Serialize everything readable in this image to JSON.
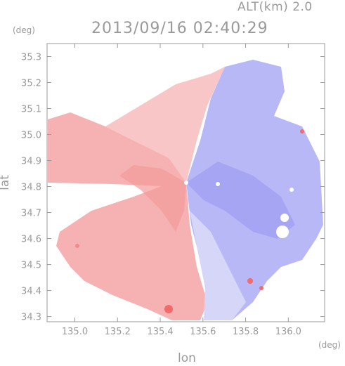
{
  "header": {
    "altitude_label": "ALT(km) 2.0",
    "timestamp": "2013/09/16 02:40:29"
  },
  "chart_data": {
    "type": "heatmap",
    "title": "2013/09/16 02:40:29",
    "subtitle": "ALT(km) 2.0",
    "xlabel": "lon",
    "ylabel": "lat",
    "x_unit": "(deg)",
    "y_unit": "(deg)",
    "xlim": [
      134.87,
      136.17
    ],
    "ylim": [
      34.28,
      35.35
    ],
    "x_ticks": [
      135.0,
      135.2,
      135.4,
      135.6,
      135.8,
      136.0
    ],
    "x_tick_labels": [
      "135.0",
      "135.2",
      "135.4",
      "135.6",
      "135.8",
      "136.0"
    ],
    "y_ticks": [
      34.3,
      34.4,
      34.5,
      34.6,
      34.7,
      34.8,
      34.9,
      35.0,
      35.1,
      35.2,
      35.3
    ],
    "y_tick_labels": [
      "34.3",
      "34.4",
      "34.5",
      "34.6",
      "34.7",
      "34.8",
      "34.9",
      "35.0",
      "35.1",
      "35.2",
      "35.3"
    ],
    "grid": false,
    "radar_center": {
      "lon": 135.52,
      "lat": 34.82
    },
    "colors": {
      "toward": "#f07070",
      "away": "#7070f0",
      "neutral": "#ffffff",
      "axis": "#9a9a9a"
    }
  }
}
